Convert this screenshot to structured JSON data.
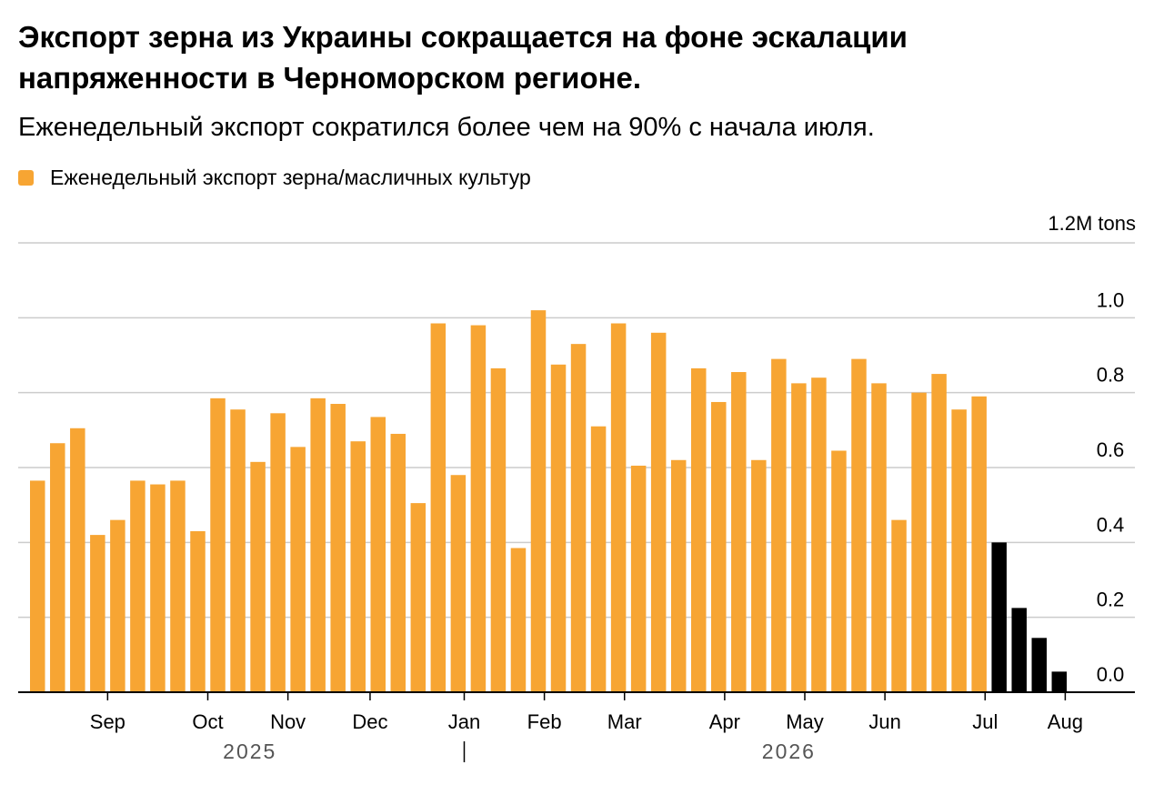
{
  "header": {
    "title": "Экспорт зерна из Украины сокращается на фоне эскалации напряженности в Черноморском регионе.",
    "subtitle": "Еженедельный экспорт сократился более чем на 90% с начала июля."
  },
  "legend": {
    "label": "Еженедельный экспорт зерна/масличных культур",
    "color": "#f7a533"
  },
  "chart_data": {
    "type": "bar",
    "ylabel_unit": "1.2M tons",
    "ylim": [
      0,
      1.2
    ],
    "yticks": [
      {
        "value": 1.2,
        "label": "1.2M tons"
      },
      {
        "value": 1.0,
        "label": "1.0"
      },
      {
        "value": 0.8,
        "label": "0.8"
      },
      {
        "value": 0.6,
        "label": "0.6"
      },
      {
        "value": 0.4,
        "label": "0.4"
      },
      {
        "value": 0.2,
        "label": "0.2"
      },
      {
        "value": 0.0,
        "label": "0.0"
      }
    ],
    "grid": true,
    "colors": {
      "normal": "#f7a533",
      "highlight": "#000000"
    },
    "values": [
      0.565,
      0.665,
      0.705,
      0.42,
      0.46,
      0.565,
      0.555,
      0.565,
      0.43,
      0.785,
      0.755,
      0.615,
      0.745,
      0.655,
      0.785,
      0.77,
      0.67,
      0.735,
      0.69,
      0.505,
      0.985,
      0.58,
      0.98,
      0.865,
      0.385,
      1.02,
      0.875,
      0.93,
      0.71,
      0.985,
      0.605,
      0.96,
      0.62,
      0.865,
      0.775,
      0.855,
      0.62,
      0.89,
      0.825,
      0.84,
      0.645,
      0.89,
      0.825,
      0.46,
      0.8,
      0.85,
      0.755,
      0.79,
      0.4,
      0.225,
      0.145,
      0.055
    ],
    "highlight_from_index": 48,
    "months": [
      {
        "label": "Sep",
        "bar_index": 3.5
      },
      {
        "label": "Oct",
        "bar_index": 8.5
      },
      {
        "label": "Nov",
        "bar_index": 12.5
      },
      {
        "label": "Dec",
        "bar_index": 16.6
      },
      {
        "label": "Jan",
        "bar_index": 21.3
      },
      {
        "label": "Feb",
        "bar_index": 25.3
      },
      {
        "label": "Mar",
        "bar_index": 29.3
      },
      {
        "label": "Apr",
        "bar_index": 34.3
      },
      {
        "label": "May",
        "bar_index": 38.3
      },
      {
        "label": "Jun",
        "bar_index": 42.3
      },
      {
        "label": "Jul",
        "bar_index": 47.3
      },
      {
        "label": "Aug",
        "bar_index": 51.3
      }
    ],
    "years": [
      {
        "label": "2025",
        "bar_index": 10.6
      },
      {
        "label": "2026",
        "bar_index": 37.5
      }
    ],
    "year_divider_index": 21.3
  }
}
